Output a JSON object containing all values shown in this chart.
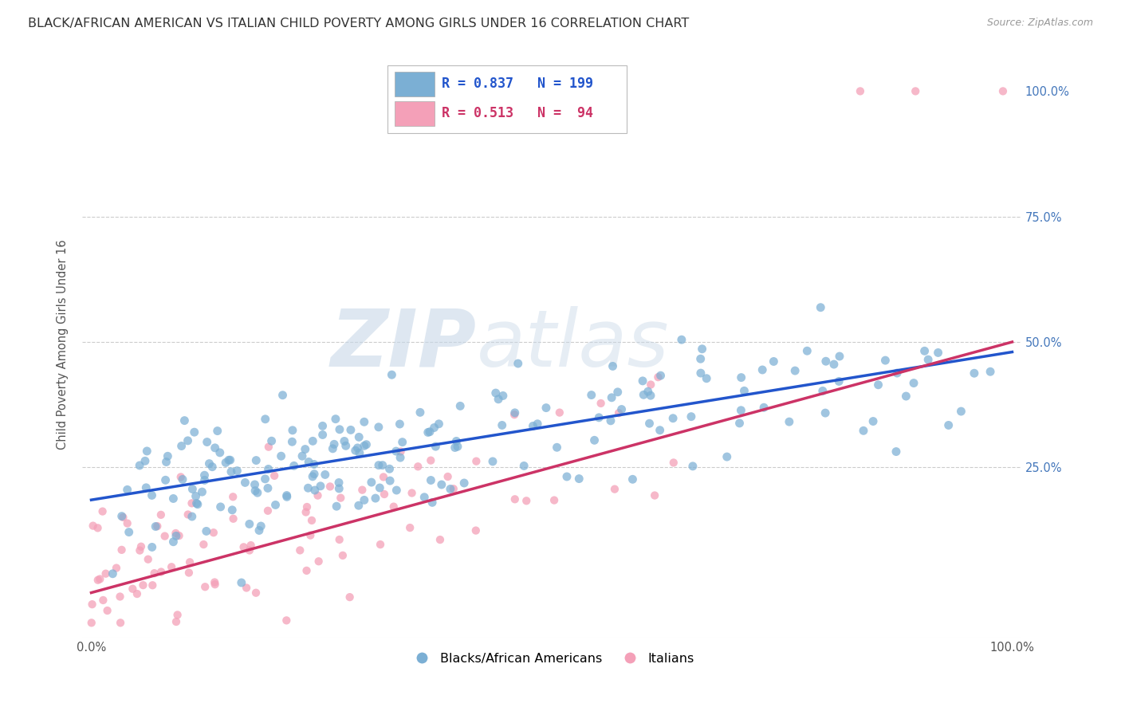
{
  "title": "BLACK/AFRICAN AMERICAN VS ITALIAN CHILD POVERTY AMONG GIRLS UNDER 16 CORRELATION CHART",
  "source": "Source: ZipAtlas.com",
  "ylabel": "Child Poverty Among Girls Under 16",
  "watermark_zip": "ZIP",
  "watermark_atlas": "atlas",
  "blue_R": 0.837,
  "blue_N": 199,
  "pink_R": 0.513,
  "pink_N": 94,
  "blue_color": "#7bafd4",
  "pink_color": "#f4a0b8",
  "blue_line_color": "#2255cc",
  "pink_line_color": "#cc3366",
  "blue_slope": 0.295,
  "blue_intercept": 0.185,
  "blue_noise": 0.065,
  "pink_slope": 0.5,
  "pink_intercept": 0.0,
  "pink_noise": 0.085,
  "legend_blue_label": "Blacks/African Americans",
  "legend_pink_label": "Italians",
  "background_color": "#ffffff",
  "tick_color": "#5588cc",
  "title_fontsize": 11.5,
  "axis_label_fontsize": 10,
  "ytick_color": "#4477bb"
}
